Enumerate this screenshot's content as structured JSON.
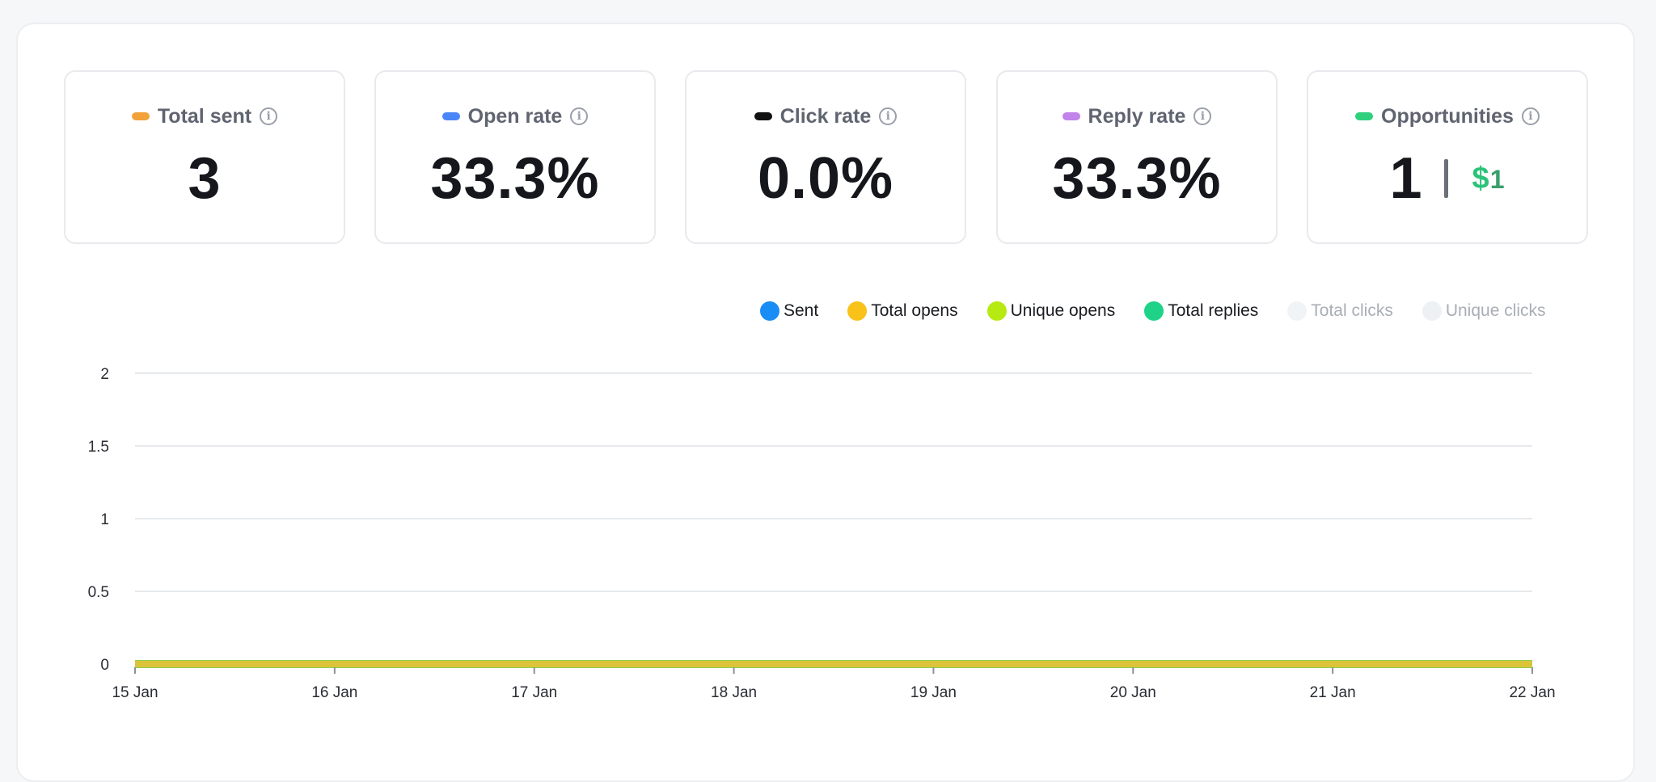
{
  "cards": [
    {
      "label": "Total sent",
      "value": "3",
      "pill_color": "#f2a23b"
    },
    {
      "label": "Open rate",
      "value": "33.3%",
      "pill_color": "#4a86f7"
    },
    {
      "label": "Click rate",
      "value": "0.0%",
      "pill_color": "#111111"
    },
    {
      "label": "Reply rate",
      "value": "33.3%",
      "pill_color": "#c283ea"
    },
    {
      "label": "Opportunities",
      "value": "1",
      "pill_color": "#2fd07e",
      "currency": "$",
      "amount": "1"
    }
  ],
  "info_icon": "info-icon",
  "info_glyph": "i",
  "legend": [
    {
      "label": "Sent",
      "color": "#1a8cf5",
      "active": true
    },
    {
      "label": "Total opens",
      "color": "#f9c21a",
      "active": true
    },
    {
      "label": "Unique opens",
      "color": "#b6ea12",
      "active": true
    },
    {
      "label": "Total replies",
      "color": "#1ed387",
      "active": true
    },
    {
      "label": "Total clicks",
      "color": "#f1f4f7",
      "active": false
    },
    {
      "label": "Unique clicks",
      "color": "#eef1f4",
      "active": false
    }
  ],
  "chart_data": {
    "type": "area",
    "x": [
      "15 Jan",
      "16 Jan",
      "17 Jan",
      "18 Jan",
      "19 Jan",
      "20 Jan",
      "21 Jan",
      "22 Jan"
    ],
    "yticks": [
      "0",
      "0.5",
      "1",
      "1.5",
      "2"
    ],
    "ylim": [
      0,
      2
    ],
    "grid": true,
    "legend_position": "top-right",
    "series": [
      {
        "name": "Sent",
        "values": [
          0,
          0,
          0,
          0,
          0,
          0,
          0,
          0
        ],
        "color": "#1a8cf5"
      },
      {
        "name": "Total opens",
        "values": [
          0,
          0,
          0,
          0,
          0,
          0,
          0,
          0
        ],
        "color": "#f9c21a"
      },
      {
        "name": "Unique opens",
        "values": [
          0,
          0,
          0,
          0,
          0,
          0,
          0,
          0
        ],
        "color": "#b6ea12"
      },
      {
        "name": "Total replies",
        "values": [
          0,
          0,
          0,
          0,
          0,
          0,
          0,
          0
        ],
        "color": "#1ed387"
      }
    ]
  }
}
